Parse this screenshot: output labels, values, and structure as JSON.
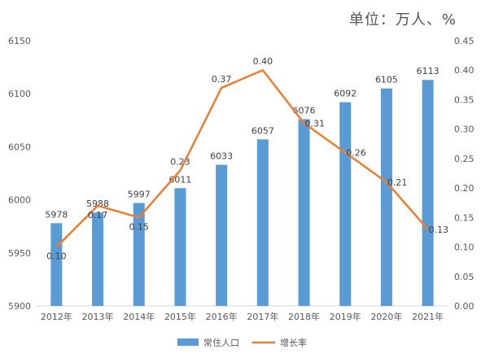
{
  "unit_label": "单位：万人、%",
  "chart_data": {
    "type": "bar",
    "categories": [
      "2012年",
      "2013年",
      "2014年",
      "2015年",
      "2016年",
      "2017年",
      "2018年",
      "2019年",
      "2020年",
      "2021年"
    ],
    "series": [
      {
        "name": "常住人口",
        "type": "bar",
        "axis": "left",
        "color": "#5b9bd5",
        "values": [
          5978,
          5988,
          5997,
          6011,
          6033,
          6057,
          6076,
          6092,
          6105,
          6113
        ],
        "labels": [
          "5978",
          "5988",
          "5997",
          "6011",
          "6033",
          "6057",
          "6076",
          "6092",
          "6105",
          "6113"
        ]
      },
      {
        "name": "增长率",
        "type": "line",
        "axis": "right",
        "color": "#ed7d31",
        "values": [
          0.1,
          0.17,
          0.15,
          0.23,
          0.37,
          0.4,
          0.31,
          0.26,
          0.21,
          0.13
        ],
        "labels": [
          "0.10",
          "0.17",
          "0.15",
          "0.23",
          "0.37",
          "0.40",
          "0.31",
          "0.26",
          "0.21",
          "0.13"
        ]
      }
    ],
    "y_left": {
      "min": 5900,
      "max": 6150,
      "step": 50,
      "ticks": [
        "5900",
        "5950",
        "6000",
        "6050",
        "6100",
        "6150"
      ]
    },
    "y_right": {
      "min": 0,
      "max": 0.45,
      "step": 0.05,
      "ticks": [
        "0.00",
        "0.05",
        "0.10",
        "0.15",
        "0.20",
        "0.25",
        "0.30",
        "0.35",
        "0.40",
        "0.45"
      ]
    },
    "grid": false,
    "legend_position": "bottom"
  }
}
